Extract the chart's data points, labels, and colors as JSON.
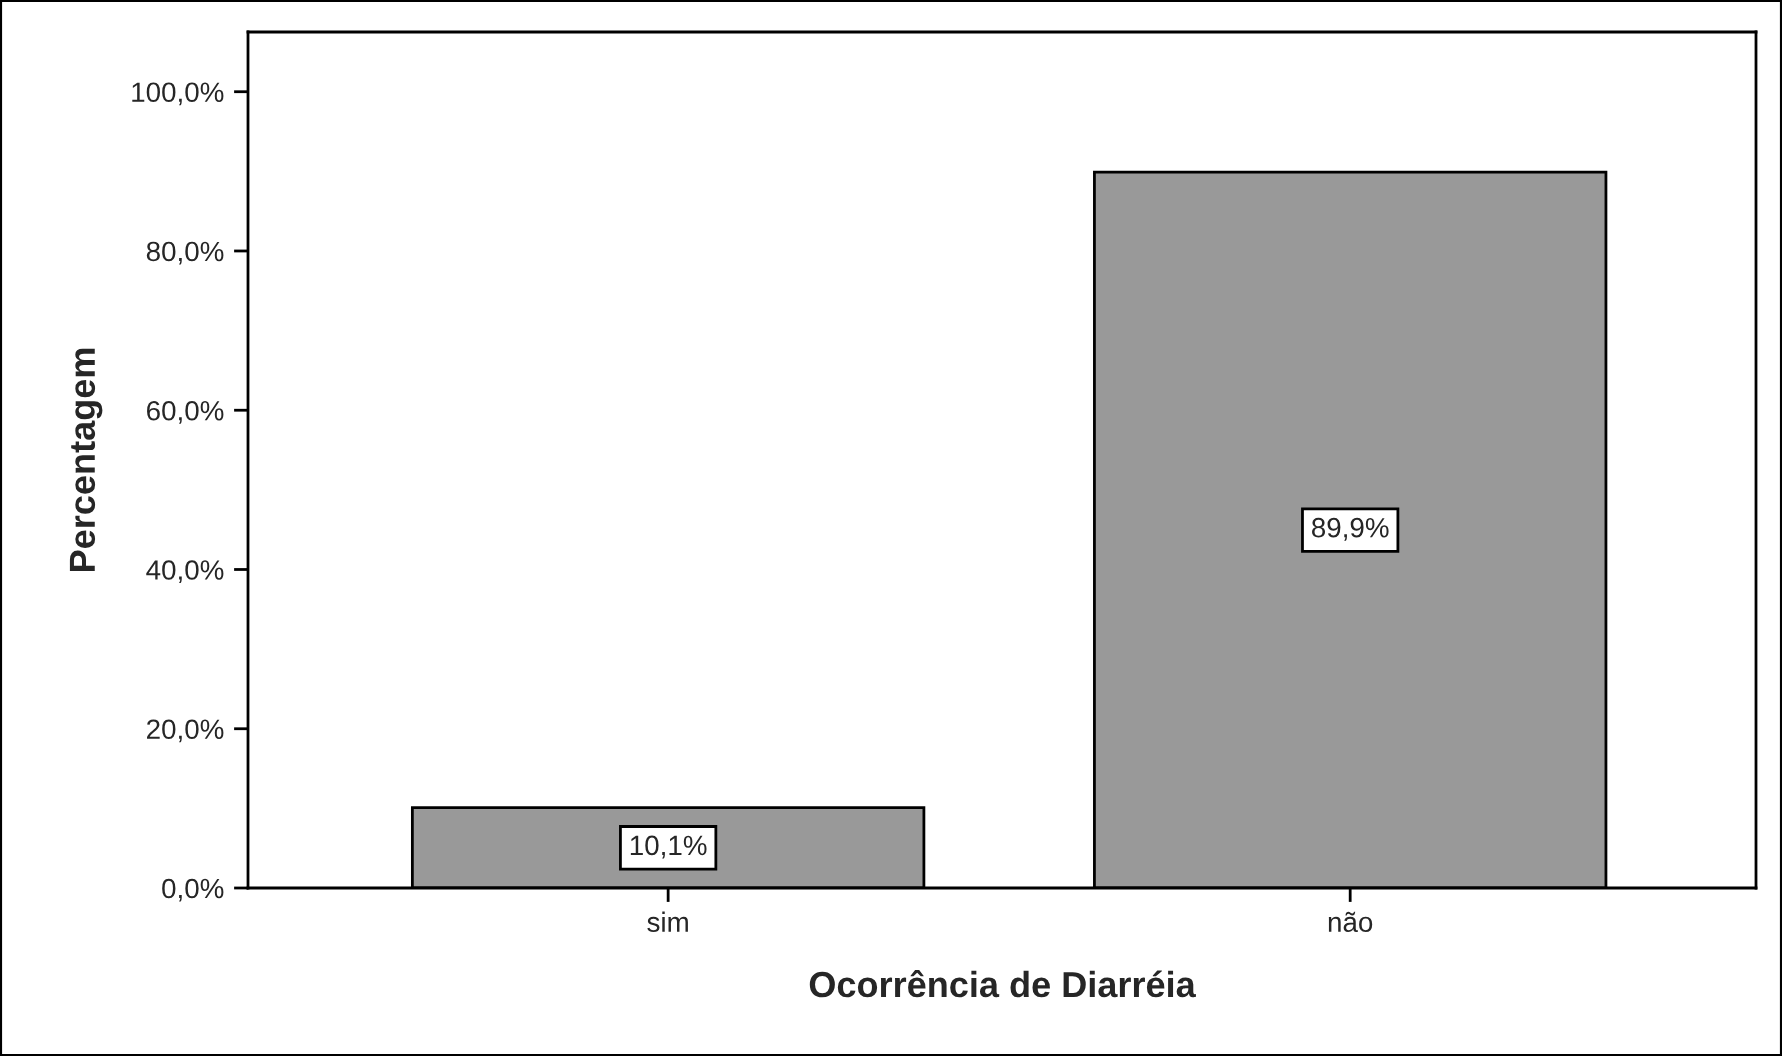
{
  "chart_data": {
    "type": "bar",
    "xlabel": "Ocorrência de Diarréia",
    "ylabel": "Percentagem",
    "categories": [
      "sim",
      "não"
    ],
    "series": [
      {
        "color": "#999999",
        "values": [
          10.1,
          89.9
        ],
        "value_labels": [
          "10,1%",
          "89,9%"
        ]
      }
    ],
    "ylim": [
      0,
      107.5
    ],
    "yticks": [
      {
        "value": 0,
        "label": "0,0%"
      },
      {
        "value": 20,
        "label": "20,0%"
      },
      {
        "value": 40,
        "label": "40,0%"
      },
      {
        "value": 60,
        "label": "60,0%"
      },
      {
        "value": 80,
        "label": "80,0%"
      },
      {
        "value": 100,
        "label": "100,0%"
      }
    ],
    "grid": false,
    "legend": false
  }
}
